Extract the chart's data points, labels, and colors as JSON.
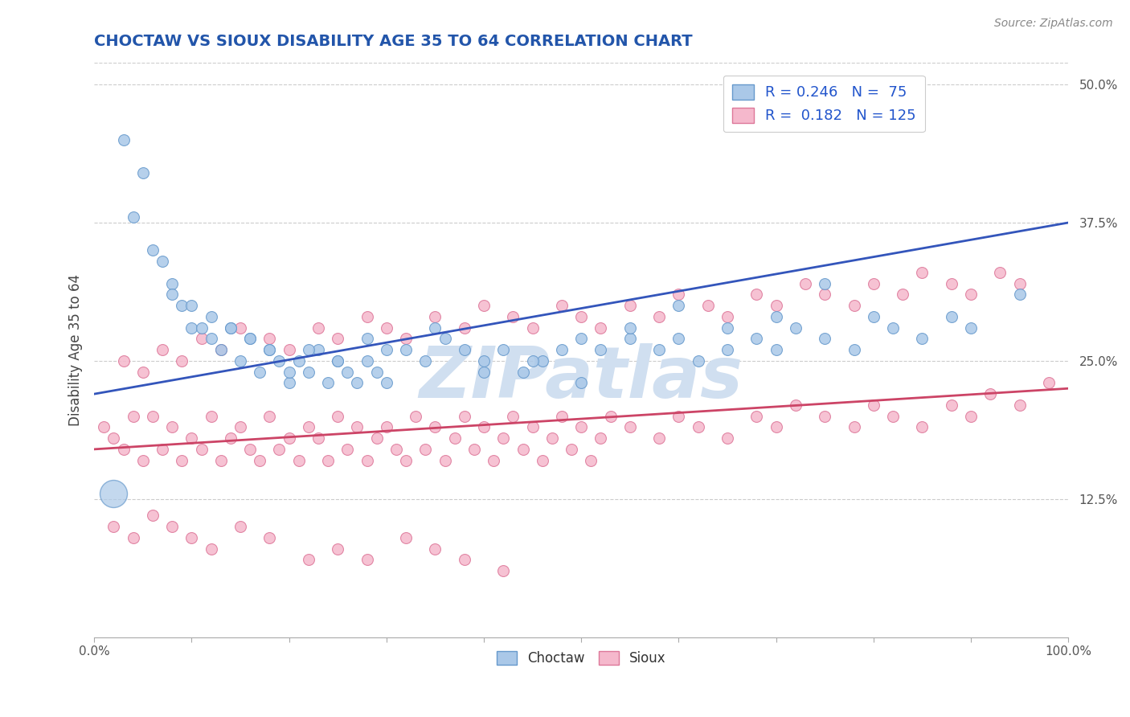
{
  "title": "CHOCTAW VS SIOUX DISABILITY AGE 35 TO 64 CORRELATION CHART",
  "source_text": "Source: ZipAtlas.com",
  "ylabel": "Disability Age 35 to 64",
  "xlim": [
    0,
    100
  ],
  "ylim": [
    0,
    52
  ],
  "yticks": [
    12.5,
    25.0,
    37.5,
    50.0
  ],
  "ytick_labels": [
    "12.5%",
    "25.0%",
    "37.5%",
    "50.0%"
  ],
  "choctaw_R": 0.246,
  "choctaw_N": 75,
  "sioux_R": 0.182,
  "sioux_N": 125,
  "choctaw_marker_color": "#aac8e8",
  "choctaw_edge_color": "#6699cc",
  "sioux_marker_color": "#f5b8cc",
  "sioux_edge_color": "#dd7799",
  "choctaw_line_color": "#3355bb",
  "sioux_line_color": "#cc4466",
  "background_color": "#ffffff",
  "grid_color": "#cccccc",
  "title_color": "#2255aa",
  "watermark_color": "#d0dff0",
  "choctaw_line_y0": 22.0,
  "choctaw_line_y1": 37.5,
  "sioux_line_y0": 17.0,
  "sioux_line_y1": 22.5,
  "choctaw_x": [
    3,
    5,
    7,
    8,
    9,
    10,
    11,
    12,
    13,
    14,
    15,
    16,
    17,
    18,
    19,
    20,
    21,
    22,
    23,
    24,
    25,
    26,
    27,
    28,
    29,
    30,
    32,
    34,
    36,
    38,
    40,
    42,
    44,
    46,
    48,
    50,
    52,
    55,
    58,
    60,
    62,
    65,
    68,
    70,
    72,
    75,
    78,
    80,
    82,
    85,
    88,
    90,
    4,
    6,
    8,
    10,
    12,
    14,
    16,
    18,
    20,
    22,
    25,
    28,
    30,
    35,
    40,
    45,
    50,
    55,
    60,
    65,
    70,
    75,
    95
  ],
  "choctaw_y": [
    45,
    42,
    34,
    32,
    30,
    28,
    28,
    27,
    26,
    28,
    25,
    27,
    24,
    26,
    25,
    23,
    25,
    24,
    26,
    23,
    25,
    24,
    23,
    25,
    24,
    23,
    26,
    25,
    27,
    26,
    25,
    26,
    24,
    25,
    26,
    27,
    26,
    27,
    26,
    27,
    25,
    26,
    27,
    26,
    28,
    27,
    26,
    29,
    28,
    27,
    29,
    28,
    38,
    35,
    31,
    30,
    29,
    28,
    27,
    26,
    24,
    26,
    25,
    27,
    26,
    28,
    24,
    25,
    23,
    28,
    30,
    28,
    29,
    32,
    31
  ],
  "sioux_x": [
    1,
    2,
    3,
    4,
    5,
    6,
    7,
    8,
    9,
    10,
    11,
    12,
    13,
    14,
    15,
    16,
    17,
    18,
    19,
    20,
    21,
    22,
    23,
    24,
    25,
    26,
    27,
    28,
    29,
    30,
    31,
    32,
    33,
    34,
    35,
    36,
    37,
    38,
    39,
    40,
    41,
    42,
    43,
    44,
    45,
    46,
    47,
    48,
    49,
    50,
    51,
    52,
    53,
    55,
    58,
    60,
    62,
    65,
    68,
    70,
    72,
    75,
    78,
    80,
    82,
    85,
    88,
    90,
    92,
    95,
    98,
    3,
    5,
    7,
    9,
    11,
    13,
    15,
    18,
    20,
    23,
    25,
    28,
    30,
    32,
    35,
    38,
    40,
    43,
    45,
    48,
    50,
    52,
    55,
    58,
    60,
    63,
    65,
    68,
    70,
    73,
    75,
    78,
    80,
    83,
    85,
    88,
    90,
    93,
    95,
    2,
    4,
    6,
    8,
    10,
    12,
    15,
    18,
    22,
    25,
    28,
    32,
    35,
    38,
    42
  ],
  "sioux_y": [
    19,
    18,
    17,
    20,
    16,
    20,
    17,
    19,
    16,
    18,
    17,
    20,
    16,
    18,
    19,
    17,
    16,
    20,
    17,
    18,
    16,
    19,
    18,
    16,
    20,
    17,
    19,
    16,
    18,
    19,
    17,
    16,
    20,
    17,
    19,
    16,
    18,
    20,
    17,
    19,
    16,
    18,
    20,
    17,
    19,
    16,
    18,
    20,
    17,
    19,
    16,
    18,
    20,
    19,
    18,
    20,
    19,
    18,
    20,
    19,
    21,
    20,
    19,
    21,
    20,
    19,
    21,
    20,
    22,
    21,
    23,
    25,
    24,
    26,
    25,
    27,
    26,
    28,
    27,
    26,
    28,
    27,
    29,
    28,
    27,
    29,
    28,
    30,
    29,
    28,
    30,
    29,
    28,
    30,
    29,
    31,
    30,
    29,
    31,
    30,
    32,
    31,
    30,
    32,
    31,
    33,
    32,
    31,
    33,
    32,
    10,
    9,
    11,
    10,
    9,
    8,
    10,
    9,
    7,
    8,
    7,
    9,
    8,
    7,
    6
  ]
}
